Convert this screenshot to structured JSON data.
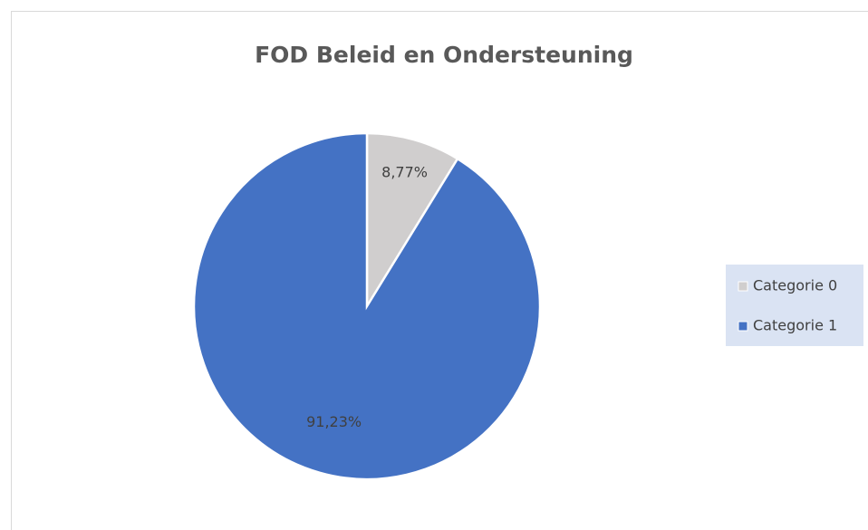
{
  "chart_data": {
    "type": "pie",
    "title": "FOD Beleid en Ondersteuning",
    "categories": [
      "Categorie 0",
      "Categorie 1"
    ],
    "values": [
      8.77,
      91.23
    ],
    "value_labels": [
      "8,77%",
      "91,23%"
    ],
    "colors": [
      "#d0cece",
      "#4472c4"
    ],
    "legend": "right"
  }
}
